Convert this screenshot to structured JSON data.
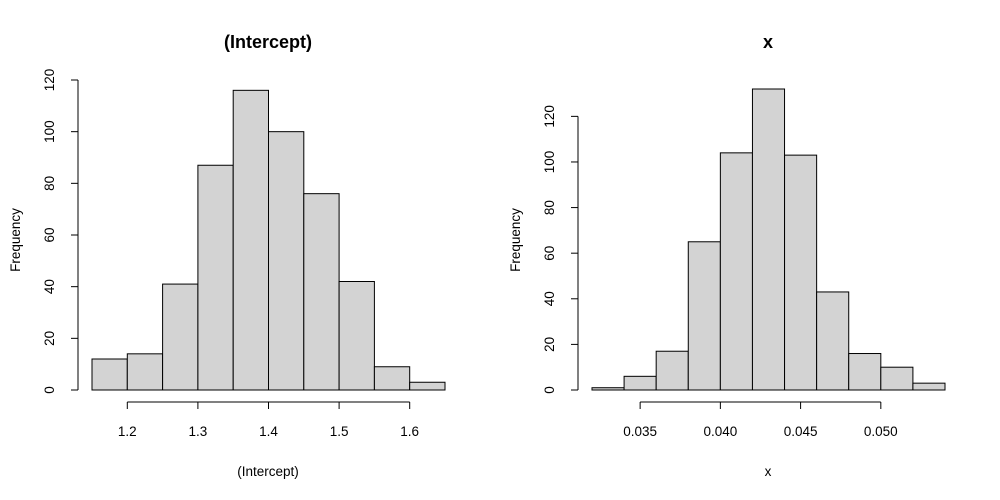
{
  "chart_data": [
    {
      "type": "bar",
      "title": "(Intercept)",
      "xlabel": "(Intercept)",
      "ylabel": "Frequency",
      "bins": [
        {
          "x0": 1.15,
          "x1": 1.2,
          "count": 12
        },
        {
          "x0": 1.2,
          "x1": 1.25,
          "count": 14
        },
        {
          "x0": 1.25,
          "x1": 1.3,
          "count": 41
        },
        {
          "x0": 1.3,
          "x1": 1.35,
          "count": 87
        },
        {
          "x0": 1.35,
          "x1": 1.4,
          "count": 116
        },
        {
          "x0": 1.4,
          "x1": 1.45,
          "count": 100
        },
        {
          "x0": 1.45,
          "x1": 1.5,
          "count": 76
        },
        {
          "x0": 1.5,
          "x1": 1.55,
          "count": 42
        },
        {
          "x0": 1.55,
          "x1": 1.6,
          "count": 9
        },
        {
          "x0": 1.6,
          "x1": 1.65,
          "count": 3
        }
      ],
      "xticks": [
        1.2,
        1.3,
        1.4,
        1.5,
        1.6
      ],
      "xtick_labels": [
        "1.2",
        "1.3",
        "1.4",
        "1.5",
        "1.6"
      ],
      "yticks": [
        0,
        20,
        40,
        60,
        80,
        100,
        120
      ],
      "ytick_labels": [
        "0",
        "20",
        "40",
        "60",
        "80",
        "100",
        "120"
      ],
      "xlim": [
        1.15,
        1.65
      ],
      "ylim": [
        0,
        120
      ],
      "grid": false
    },
    {
      "type": "bar",
      "title": "x",
      "xlabel": "x",
      "ylabel": "Frequency",
      "bins": [
        {
          "x0": 0.032,
          "x1": 0.034,
          "count": 1
        },
        {
          "x0": 0.034,
          "x1": 0.036,
          "count": 6
        },
        {
          "x0": 0.036,
          "x1": 0.038,
          "count": 17
        },
        {
          "x0": 0.038,
          "x1": 0.04,
          "count": 65
        },
        {
          "x0": 0.04,
          "x1": 0.042,
          "count": 104
        },
        {
          "x0": 0.042,
          "x1": 0.044,
          "count": 132
        },
        {
          "x0": 0.044,
          "x1": 0.046,
          "count": 103
        },
        {
          "x0": 0.046,
          "x1": 0.048,
          "count": 43
        },
        {
          "x0": 0.048,
          "x1": 0.05,
          "count": 16
        },
        {
          "x0": 0.05,
          "x1": 0.052,
          "count": 10
        },
        {
          "x0": 0.052,
          "x1": 0.054,
          "count": 3
        }
      ],
      "xticks": [
        0.035,
        0.04,
        0.045,
        0.05
      ],
      "xtick_labels": [
        "0.035",
        "0.040",
        "0.045",
        "0.050"
      ],
      "yticks": [
        0,
        20,
        40,
        60,
        80,
        100,
        120
      ],
      "ytick_labels": [
        "0",
        "20",
        "40",
        "60",
        "80",
        "100",
        "120"
      ],
      "xlim": [
        0.032,
        0.054
      ],
      "ylim": [
        0,
        132
      ],
      "grid": false
    }
  ],
  "colors": {
    "bar_fill": "#d3d3d3",
    "bar_stroke": "#000000",
    "background": "#ffffff"
  }
}
